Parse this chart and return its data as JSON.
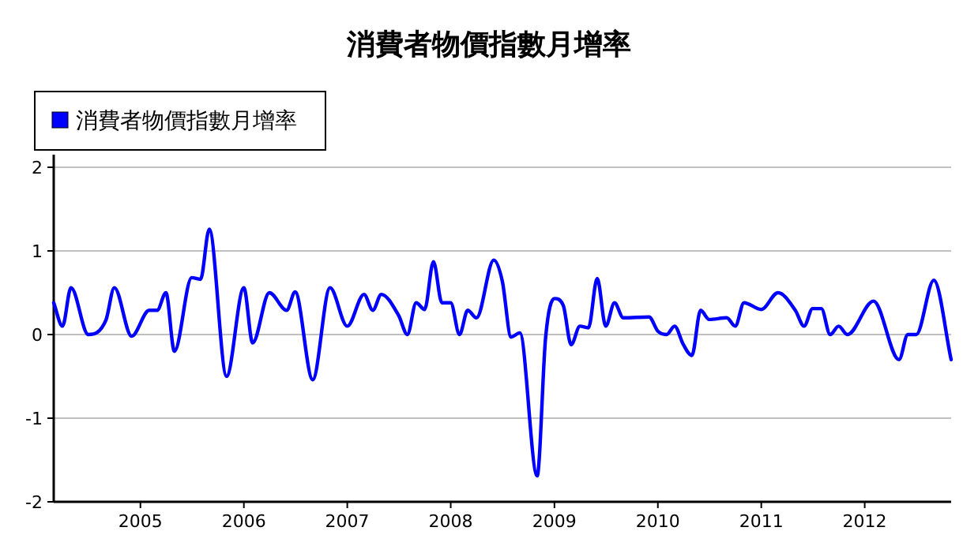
{
  "chart_data": {
    "type": "line",
    "title": "消費者物價指數月增率",
    "x": [
      "2004-03",
      "2004-04",
      "2004-05",
      "2004-07",
      "2004-09",
      "2004-10",
      "2004-12",
      "2005-02",
      "2005-03",
      "2005-04",
      "2005-05",
      "2005-07",
      "2005-08",
      "2005-09",
      "2005-11",
      "2006-01",
      "2006-02",
      "2006-04",
      "2006-06",
      "2006-07",
      "2006-09",
      "2006-11",
      "2007-01",
      "2007-03",
      "2007-04",
      "2007-05",
      "2007-07",
      "2007-08",
      "2007-09",
      "2007-10",
      "2007-11",
      "2007-12",
      "2008-01",
      "2008-02",
      "2008-03",
      "2008-04",
      "2008-06",
      "2008-07",
      "2008-08",
      "2008-09",
      "2008-11",
      "2008-12",
      "2009-01",
      "2009-02",
      "2009-03",
      "2009-04",
      "2009-05",
      "2009-06",
      "2009-07",
      "2009-08",
      "2009-09",
      "2009-12",
      "2010-01",
      "2010-02",
      "2010-03",
      "2010-04",
      "2010-05",
      "2010-06",
      "2010-07",
      "2010-09",
      "2010-10",
      "2010-11",
      "2011-01",
      "2011-03",
      "2011-05",
      "2011-06",
      "2011-07",
      "2011-08",
      "2011-09",
      "2011-10",
      "2011-11",
      "2012-02",
      "2012-05",
      "2012-06",
      "2012-07",
      "2012-09",
      "2012-11"
    ],
    "series": [
      {
        "name": "消費者物價指數月增率",
        "color": "#0000ff",
        "values": [
          0.38,
          0.1,
          0.56,
          0.0,
          0.17,
          0.56,
          -0.02,
          0.29,
          0.29,
          0.5,
          -0.2,
          0.68,
          0.66,
          1.26,
          -0.5,
          0.56,
          -0.1,
          0.5,
          0.29,
          0.51,
          -0.54,
          0.56,
          0.1,
          0.48,
          0.29,
          0.48,
          0.23,
          0.0,
          0.38,
          0.3,
          0.87,
          0.38,
          0.38,
          0.0,
          0.29,
          0.2,
          0.89,
          0.64,
          -0.03,
          0.02,
          -1.69,
          -0.03,
          0.43,
          0.35,
          -0.12,
          0.1,
          0.08,
          0.67,
          0.1,
          0.38,
          0.2,
          0.21,
          0.04,
          0.0,
          0.1,
          -0.12,
          -0.25,
          0.29,
          0.18,
          0.2,
          0.1,
          0.38,
          0.3,
          0.5,
          0.29,
          0.1,
          0.31,
          0.31,
          0.0,
          0.1,
          0.0,
          0.4,
          -0.3,
          0.0,
          0.0,
          0.65,
          -0.3
        ]
      }
    ],
    "xlim": [
      "2004-03",
      "2012-11"
    ],
    "xticks": [
      {
        "value": "2005-01",
        "label": "2005"
      },
      {
        "value": "2006-01",
        "label": "2006"
      },
      {
        "value": "2007-01",
        "label": "2007"
      },
      {
        "value": "2008-01",
        "label": "2008"
      },
      {
        "value": "2009-01",
        "label": "2009"
      },
      {
        "value": "2010-01",
        "label": "2010"
      },
      {
        "value": "2011-01",
        "label": "2011"
      },
      {
        "value": "2012-01",
        "label": "2012"
      }
    ],
    "ylim": [
      -2,
      2
    ],
    "yticks": [
      -2,
      -1,
      0,
      1,
      2
    ],
    "grid": "y",
    "legend": "top left",
    "marker": "none",
    "line_style": "solid"
  }
}
